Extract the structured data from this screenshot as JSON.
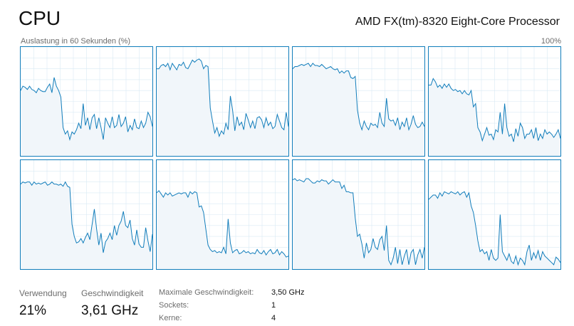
{
  "header": {
    "title": "CPU",
    "processor": "AMD FX(tm)-8320 Eight-Core Processor"
  },
  "graph": {
    "caption": "Auslastung in 60 Sekunden (%)",
    "max_label": "100%",
    "line_color": "#117dbb",
    "fill_color": "#f1f6fa",
    "grid_color": "#d9eaf4",
    "cores": [
      [
        60,
        64,
        63,
        61,
        64,
        61,
        60,
        58,
        62,
        60,
        59,
        59,
        63,
        66,
        58,
        72,
        64,
        60,
        54,
        26,
        20,
        23,
        15,
        22,
        20,
        24,
        30,
        25,
        48,
        28,
        35,
        24,
        35,
        38,
        25,
        35,
        26,
        15,
        35,
        30,
        26,
        36,
        26,
        28,
        38,
        27,
        30,
        36,
        22,
        28,
        24,
        34,
        26,
        25,
        32,
        26,
        30,
        40,
        36,
        27
      ],
      [
        80,
        80,
        83,
        84,
        82,
        85,
        79,
        85,
        82,
        79,
        84,
        83,
        86,
        81,
        80,
        84,
        88,
        86,
        88,
        89,
        87,
        80,
        83,
        82,
        44,
        32,
        21,
        26,
        18,
        23,
        20,
        30,
        24,
        55,
        42,
        23,
        36,
        28,
        31,
        24,
        39,
        33,
        26,
        32,
        25,
        35,
        36,
        33,
        26,
        35,
        28,
        31,
        25,
        27,
        38,
        32,
        26,
        24,
        40,
        27
      ],
      [
        80,
        82,
        82,
        83,
        84,
        83,
        84,
        85,
        82,
        85,
        83,
        83,
        82,
        84,
        82,
        80,
        81,
        82,
        80,
        79,
        80,
        76,
        78,
        76,
        78,
        78,
        72,
        71,
        73,
        42,
        30,
        24,
        32,
        27,
        24,
        30,
        28,
        29,
        26,
        40,
        30,
        27,
        53,
        34,
        32,
        33,
        28,
        35,
        24,
        31,
        27,
        35,
        24,
        29,
        37,
        29,
        26,
        27,
        31,
        27
      ],
      [
        65,
        65,
        71,
        68,
        63,
        65,
        62,
        66,
        63,
        66,
        62,
        60,
        61,
        59,
        60,
        57,
        60,
        57,
        56,
        60,
        45,
        48,
        26,
        22,
        14,
        20,
        26,
        19,
        20,
        15,
        24,
        22,
        40,
        20,
        48,
        26,
        18,
        20,
        13,
        25,
        18,
        30,
        26,
        16,
        20,
        20,
        24,
        16,
        26,
        14,
        20,
        16,
        24,
        20,
        22,
        20,
        17,
        20,
        24,
        16
      ],
      [
        78,
        80,
        79,
        80,
        80,
        77,
        80,
        78,
        79,
        78,
        79,
        80,
        77,
        78,
        80,
        78,
        78,
        77,
        78,
        76,
        80,
        76,
        75,
        41,
        30,
        24,
        25,
        28,
        24,
        29,
        33,
        27,
        41,
        55,
        37,
        22,
        33,
        15,
        25,
        28,
        33,
        27,
        40,
        31,
        40,
        44,
        53,
        40,
        38,
        45,
        28,
        22,
        36,
        23,
        20,
        20,
        38,
        26,
        16,
        32
      ],
      [
        70,
        72,
        69,
        66,
        70,
        68,
        70,
        67,
        68,
        69,
        70,
        69,
        70,
        70,
        66,
        71,
        69,
        71,
        70,
        57,
        58,
        52,
        37,
        22,
        18,
        16,
        17,
        15,
        16,
        15,
        20,
        14,
        46,
        24,
        15,
        17,
        18,
        14,
        15,
        17,
        15,
        16,
        14,
        15,
        14,
        18,
        15,
        14,
        17,
        13,
        16,
        18,
        14,
        15,
        18,
        13,
        16,
        14,
        11,
        12
      ],
      [
        82,
        83,
        81,
        82,
        81,
        80,
        83,
        83,
        81,
        79,
        79,
        81,
        80,
        82,
        81,
        81,
        78,
        80,
        82,
        80,
        80,
        80,
        74,
        77,
        71,
        71,
        70,
        70,
        47,
        30,
        32,
        23,
        10,
        24,
        15,
        18,
        28,
        20,
        18,
        27,
        30,
        17,
        40,
        8,
        4,
        10,
        20,
        5,
        18,
        4,
        12,
        18,
        4,
        15,
        18,
        4,
        13,
        18,
        10,
        20
      ],
      [
        64,
        66,
        68,
        68,
        65,
        70,
        67,
        71,
        70,
        69,
        71,
        70,
        69,
        71,
        68,
        70,
        71,
        66,
        70,
        58,
        52,
        40,
        26,
        16,
        18,
        14,
        16,
        8,
        18,
        10,
        8,
        10,
        50,
        16,
        12,
        8,
        14,
        7,
        5,
        12,
        4,
        10,
        8,
        4,
        16,
        22,
        8,
        15,
        10,
        17,
        8,
        16,
        12,
        10,
        8,
        6,
        4,
        11,
        9,
        6
      ]
    ]
  },
  "stats": {
    "usage_label": "Verwendung",
    "usage_value": "21%",
    "speed_label": "Geschwindigkeit",
    "speed_value": "3,61 GHz",
    "details": [
      {
        "label": "Maximale Geschwindigkeit:",
        "value": "3,50 GHz"
      },
      {
        "label": "Sockets:",
        "value": "1"
      },
      {
        "label": "Kerne:",
        "value": "4"
      }
    ]
  }
}
